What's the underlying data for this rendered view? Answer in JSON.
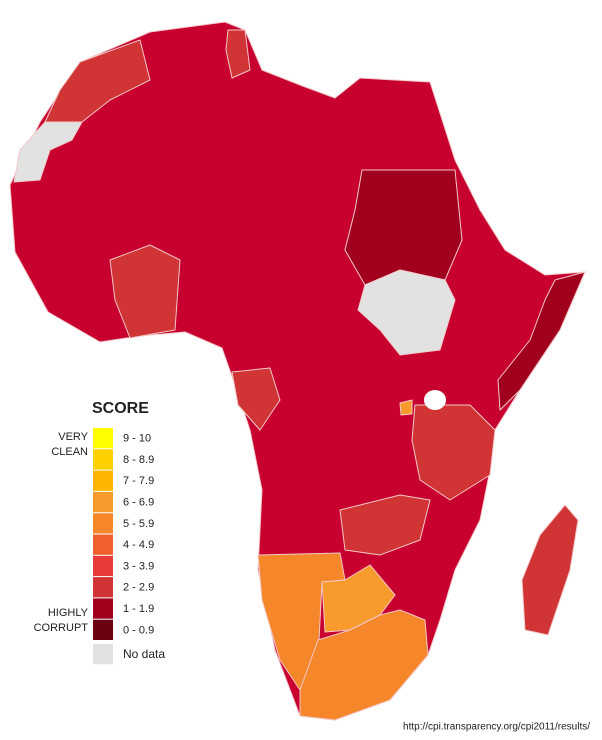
{
  "legend": {
    "title": "SCORE",
    "top_label": [
      "VERY",
      "CLEAN"
    ],
    "bottom_label": [
      "HIGHLY",
      "CORRUPT"
    ],
    "items": [
      {
        "label": "9 - 10",
        "color": "#ffff00"
      },
      {
        "label": "8 - 8.9",
        "color": "#ffd000"
      },
      {
        "label": "7 - 7.9",
        "color": "#ffb400"
      },
      {
        "label": "6 - 6.9",
        "color": "#f89a2c"
      },
      {
        "label": "5 - 5.9",
        "color": "#f6862a"
      },
      {
        "label": "4 - 4.9",
        "color": "#f0602e"
      },
      {
        "label": "3 - 3.9",
        "color": "#ea3a3a"
      },
      {
        "label": "2 - 2.9",
        "color": "#d03434"
      },
      {
        "label": "1 - 1.9",
        "color": "#a0001e"
      },
      {
        "label": "0 - 0.9",
        "color": "#6b0010"
      }
    ],
    "no_data": {
      "label": "No data",
      "color": "#e2e2e2"
    }
  },
  "source": "http://cpi.transparency.org/cpi2011/results/"
}
